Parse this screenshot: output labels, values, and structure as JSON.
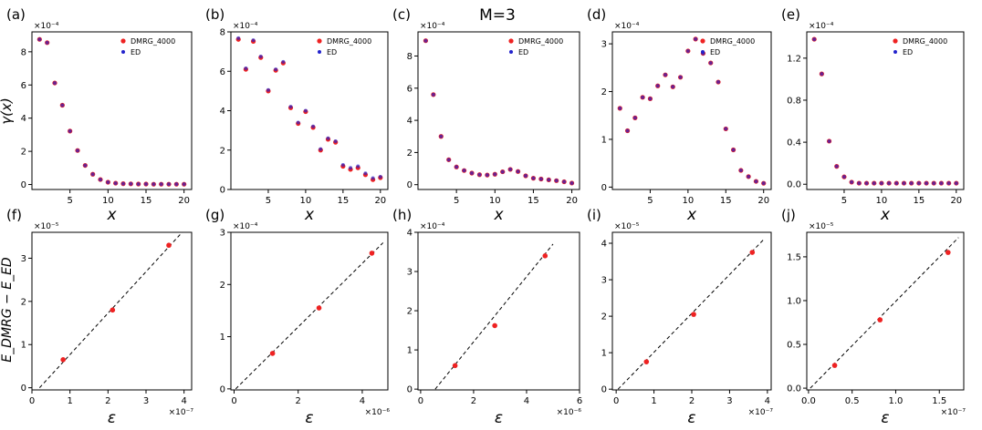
{
  "figure": {
    "title": "M=3",
    "top_xlabel": "x",
    "top_ylabel": "γ(x)",
    "bottom_xlabel": "ε",
    "bottom_ylabel": "E_DMRG − E_ED",
    "legend": [
      "DMRG_4000",
      "ED"
    ]
  },
  "colors": {
    "dmrg": "#ee2222",
    "ed": "#2222cc",
    "fit": "#000000",
    "axis": "#000000"
  },
  "chart_data": [
    {
      "panel": "(a)",
      "type": "scatter",
      "legend_position": "top-right",
      "multiplier": "×10⁻⁴",
      "xlim": [
        0,
        21
      ],
      "ylim": [
        -0.3,
        9.2
      ],
      "xticks": [
        5,
        10,
        15,
        20
      ],
      "yticks": [
        0,
        2,
        4,
        6,
        8
      ],
      "x": [
        1,
        2,
        3,
        4,
        5,
        6,
        7,
        8,
        9,
        10,
        11,
        12,
        13,
        14,
        15,
        16,
        17,
        18,
        19,
        20
      ],
      "series": [
        {
          "name": "DMRG_4000",
          "values": [
            8.75,
            8.55,
            6.12,
            4.78,
            3.22,
            2.05,
            1.15,
            0.62,
            0.3,
            0.14,
            0.08,
            0.05,
            0.04,
            0.03,
            0.03,
            0.02,
            0.02,
            0.02,
            0.02,
            0.02
          ]
        },
        {
          "name": "ED",
          "values": [
            8.75,
            8.55,
            6.12,
            4.78,
            3.22,
            2.05,
            1.15,
            0.62,
            0.3,
            0.14,
            0.08,
            0.05,
            0.04,
            0.03,
            0.03,
            0.02,
            0.02,
            0.02,
            0.02,
            0.02
          ]
        }
      ]
    },
    {
      "panel": "(b)",
      "type": "scatter",
      "legend_position": "top-right",
      "multiplier": "×10⁻⁴",
      "xlim": [
        0,
        21
      ],
      "ylim": [
        0,
        8
      ],
      "xticks": [
        5,
        10,
        15,
        20
      ],
      "yticks": [
        0,
        2,
        4,
        6,
        8
      ],
      "x": [
        1,
        2,
        3,
        4,
        5,
        6,
        7,
        8,
        9,
        10,
        11,
        12,
        13,
        14,
        15,
        16,
        17,
        18,
        19,
        20
      ],
      "series": [
        {
          "name": "DMRG_4000",
          "values": [
            7.62,
            6.1,
            7.52,
            6.7,
            5.0,
            6.05,
            6.42,
            4.15,
            3.35,
            3.95,
            3.15,
            2.0,
            2.55,
            2.4,
            1.18,
            1.02,
            1.1,
            0.75,
            0.5,
            0.6
          ]
        },
        {
          "name": "ED",
          "values": [
            7.68,
            6.15,
            7.58,
            6.75,
            5.05,
            6.1,
            6.48,
            4.2,
            3.4,
            4.0,
            3.2,
            2.05,
            2.6,
            2.45,
            1.25,
            1.1,
            1.18,
            0.82,
            0.58,
            0.65
          ]
        }
      ]
    },
    {
      "panel": "(c)",
      "type": "scatter",
      "legend_position": "top-right",
      "multiplier": "×10⁻⁴",
      "xlim": [
        0,
        21
      ],
      "ylim": [
        -0.3,
        9.5
      ],
      "xticks": [
        5,
        10,
        15,
        20
      ],
      "yticks": [
        0,
        2,
        4,
        6,
        8
      ],
      "x": [
        1,
        2,
        3,
        4,
        5,
        6,
        7,
        8,
        9,
        10,
        11,
        12,
        13,
        14,
        15,
        16,
        17,
        18,
        19,
        20
      ],
      "series": [
        {
          "name": "DMRG_4000",
          "values": [
            8.95,
            5.6,
            3.0,
            1.55,
            1.1,
            0.88,
            0.72,
            0.62,
            0.6,
            0.65,
            0.8,
            0.95,
            0.82,
            0.55,
            0.4,
            0.35,
            0.3,
            0.25,
            0.18,
            0.1
          ]
        },
        {
          "name": "ED",
          "values": [
            8.95,
            5.6,
            3.0,
            1.55,
            1.1,
            0.88,
            0.72,
            0.62,
            0.6,
            0.65,
            0.8,
            0.95,
            0.82,
            0.55,
            0.4,
            0.35,
            0.3,
            0.25,
            0.18,
            0.1
          ]
        }
      ]
    },
    {
      "panel": "(d)",
      "type": "scatter",
      "legend_position": "top-right",
      "multiplier": "×10⁻⁴",
      "xlim": [
        0,
        21
      ],
      "ylim": [
        -0.05,
        3.25
      ],
      "xticks": [
        5,
        10,
        15,
        20
      ],
      "yticks": [
        0,
        1,
        2,
        3
      ],
      "x": [
        1,
        2,
        3,
        4,
        5,
        6,
        7,
        8,
        9,
        10,
        11,
        12,
        13,
        14,
        15,
        16,
        17,
        18,
        19,
        20
      ],
      "series": [
        {
          "name": "DMRG_4000",
          "values": [
            1.65,
            1.18,
            1.45,
            1.88,
            1.85,
            2.12,
            2.35,
            2.1,
            2.3,
            2.85,
            3.1,
            2.8,
            2.6,
            2.2,
            1.22,
            0.78,
            0.35,
            0.22,
            0.12,
            0.08
          ]
        },
        {
          "name": "ED",
          "values": [
            1.65,
            1.18,
            1.45,
            1.88,
            1.85,
            2.12,
            2.35,
            2.1,
            2.3,
            2.85,
            3.1,
            2.8,
            2.6,
            2.2,
            1.22,
            0.78,
            0.35,
            0.22,
            0.12,
            0.08
          ]
        }
      ]
    },
    {
      "panel": "(e)",
      "type": "scatter",
      "legend_position": "top-right",
      "multiplier": "×10⁻⁴",
      "xlim": [
        0,
        21
      ],
      "ylim": [
        -0.05,
        1.45
      ],
      "xticks": [
        5,
        10,
        15,
        20
      ],
      "yticks": [
        0.0,
        0.4,
        0.8,
        1.2
      ],
      "x": [
        1,
        2,
        3,
        4,
        5,
        6,
        7,
        8,
        9,
        10,
        11,
        12,
        13,
        14,
        15,
        16,
        17,
        18,
        19,
        20
      ],
      "series": [
        {
          "name": "DMRG_4000",
          "values": [
            1.38,
            1.05,
            0.41,
            0.17,
            0.07,
            0.02,
            0.01,
            0.01,
            0.01,
            0.01,
            0.01,
            0.01,
            0.01,
            0.01,
            0.01,
            0.01,
            0.01,
            0.01,
            0.01,
            0.01
          ]
        },
        {
          "name": "ED",
          "values": [
            1.38,
            1.05,
            0.41,
            0.17,
            0.07,
            0.02,
            0.01,
            0.01,
            0.01,
            0.01,
            0.01,
            0.01,
            0.01,
            0.01,
            0.01,
            0.01,
            0.01,
            0.01,
            0.01,
            0.01
          ]
        }
      ]
    },
    {
      "panel": "(f)",
      "type": "scatter",
      "multiplier_y": "×10⁻⁵",
      "multiplier_x": "×10⁻⁷",
      "xlim": [
        0,
        4.2
      ],
      "ylim": [
        -0.05,
        3.6
      ],
      "xticks": [
        0,
        1,
        2,
        3,
        4
      ],
      "yticks": [
        0,
        1,
        2,
        3
      ],
      "points": {
        "x": [
          0.82,
          2.12,
          3.6
        ],
        "y": [
          0.65,
          1.8,
          3.3
        ]
      },
      "fit_line": {
        "x": [
          0.2,
          3.95
        ],
        "y": [
          0,
          3.6
        ]
      }
    },
    {
      "panel": "(g)",
      "type": "scatter",
      "multiplier_y": "×10⁻⁴",
      "multiplier_x": "×10⁻⁶",
      "xlim": [
        -0.1,
        4.8
      ],
      "ylim": [
        -0.02,
        3.0
      ],
      "xticks": [
        0,
        2,
        4
      ],
      "yticks": [
        0,
        1,
        2,
        3
      ],
      "points": {
        "x": [
          1.2,
          2.65,
          4.3
        ],
        "y": [
          0.68,
          1.55,
          2.6
        ]
      },
      "fit_line": {
        "x": [
          0.05,
          4.65
        ],
        "y": [
          0,
          2.8
        ]
      }
    },
    {
      "panel": "(h)",
      "type": "scatter",
      "multiplier_y": "×10⁻⁴",
      "multiplier_x": "×10⁻⁶",
      "xlim": [
        -0.1,
        6.0
      ],
      "ylim": [
        -0.02,
        4.0
      ],
      "xticks": [
        0,
        2,
        4,
        6
      ],
      "yticks": [
        0,
        1,
        2,
        3,
        4
      ],
      "points": {
        "x": [
          1.3,
          2.8,
          4.7
        ],
        "y": [
          0.6,
          1.62,
          3.4
        ]
      },
      "fit_line": {
        "x": [
          0.55,
          5.0
        ],
        "y": [
          0,
          3.7
        ]
      }
    },
    {
      "panel": "(i)",
      "type": "scatter",
      "multiplier_y": "×10⁻⁵",
      "multiplier_x": "×10⁻⁷",
      "xlim": [
        -0.1,
        4.1
      ],
      "ylim": [
        -0.02,
        4.3
      ],
      "xticks": [
        0,
        1,
        2,
        3,
        4
      ],
      "yticks": [
        0,
        1,
        2,
        3,
        4
      ],
      "points": {
        "x": [
          0.8,
          2.05,
          3.6
        ],
        "y": [
          0.75,
          2.05,
          3.75
        ]
      },
      "fit_line": {
        "x": [
          0.05,
          3.9
        ],
        "y": [
          0,
          4.1
        ]
      }
    },
    {
      "panel": "(j)",
      "type": "scatter",
      "multiplier_y": "×10⁻⁵",
      "multiplier_x": "×10⁻⁷",
      "xlim": [
        -0.02,
        1.78
      ],
      "ylim": [
        -0.02,
        1.78
      ],
      "xticks": [
        0.0,
        0.5,
        1.0,
        1.5
      ],
      "yticks": [
        0.0,
        0.5,
        1.0,
        1.5
      ],
      "points": {
        "x": [
          0.3,
          0.82,
          1.6
        ],
        "y": [
          0.26,
          0.78,
          1.55
        ]
      },
      "fit_line": {
        "x": [
          0.02,
          1.72
        ],
        "y": [
          0,
          1.72
        ]
      }
    }
  ]
}
